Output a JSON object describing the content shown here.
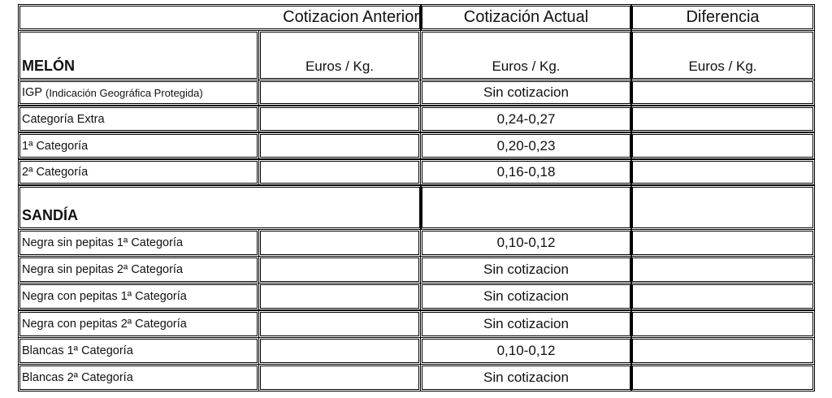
{
  "header": {
    "prev": "Cotizacion Anterior",
    "current": "Cotización Actual",
    "diff": "Diferencia"
  },
  "unit": "Euros / Kg.",
  "melon": {
    "title": "MELÓN",
    "rows": [
      {
        "label_main": "IGP",
        "label_note": "(Indicación Geográfica Protegida)",
        "current": "Sin cotizacion"
      },
      {
        "label_main": "Categoría Extra",
        "label_note": "",
        "current": "0,24-0,27"
      },
      {
        "label_main": "1ª Categoría",
        "label_note": "",
        "current": "0,20-0,23"
      },
      {
        "label_main": "2ª Categoría",
        "label_note": "",
        "current": "0,16-0,18"
      }
    ]
  },
  "sandia": {
    "title": "SANDÍA",
    "rows": [
      {
        "label": "Negra sin pepitas 1ª Categoría",
        "current": "0,10-0,12"
      },
      {
        "label": "Negra sin pepitas 2ª Categoría",
        "current": "Sin cotizacion"
      },
      {
        "label": "Negra con pepitas 1ª Categoría",
        "current": "Sin cotizacion"
      },
      {
        "label": "Negra con pepitas 2ª Categoría",
        "current": "Sin cotizacion"
      },
      {
        "label": "Blancas 1ª Categoría",
        "current": "0,10-0,12"
      },
      {
        "label": "Blancas 2ª Categoría",
        "current": "Sin cotizacion"
      }
    ]
  }
}
